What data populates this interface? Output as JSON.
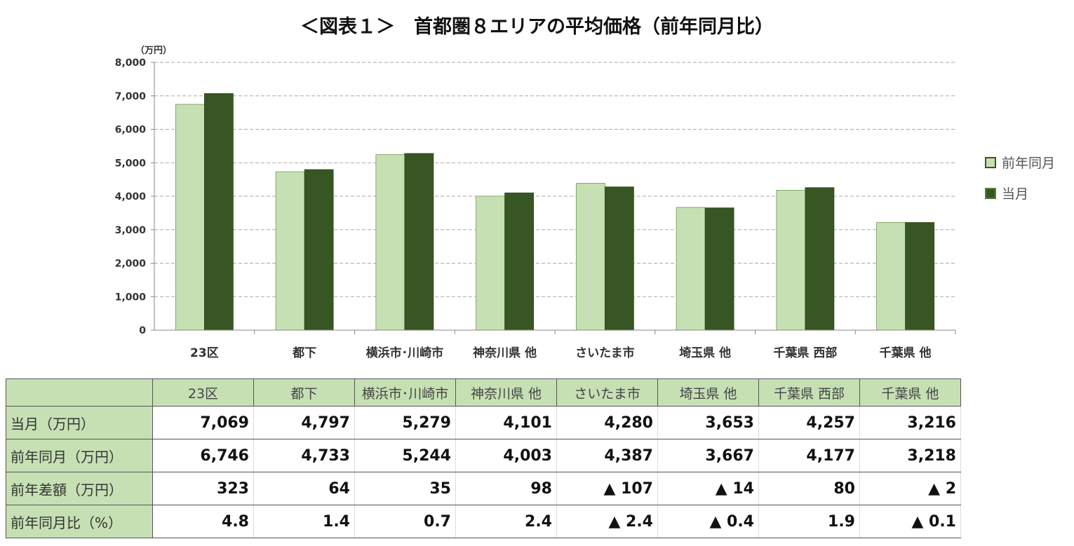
{
  "title": "＜図表１＞　首都圏８エリアの平均価格（前年同月比）",
  "chart_data": {
    "type": "bar",
    "title": "＜図表１＞　首都圏８エリアの平均価格（前年同月比）",
    "ylabel": "（万円）",
    "ylim": [
      0,
      8000
    ],
    "yticks": [
      "0",
      "1,000",
      "2,000",
      "3,000",
      "4,000",
      "5,000",
      "6,000",
      "7,000",
      "8,000"
    ],
    "grid": true,
    "legend_placement": "right",
    "categories": [
      "23区",
      "都下",
      "横浜市･川崎市",
      "神奈川県 他",
      "さいたま市",
      "埼玉県 他",
      "千葉県 西部",
      "千葉県 他"
    ],
    "series": [
      {
        "name": "前年同月",
        "color": "#c6e0b4",
        "values": [
          6746,
          4733,
          5244,
          4003,
          4387,
          3667,
          4177,
          3218
        ]
      },
      {
        "name": "当月",
        "color": "#375623",
        "values": [
          7069,
          4797,
          5279,
          4101,
          4280,
          3653,
          4257,
          3216
        ]
      }
    ]
  },
  "table": {
    "headers": [
      "23区",
      "都下",
      "横浜市･川崎市",
      "神奈川県 他",
      "さいたま市",
      "埼玉県 他",
      "千葉県 西部",
      "千葉県 他"
    ],
    "rows": [
      {
        "label": "当月（万円）",
        "cells": [
          "7,069",
          "4,797",
          "5,279",
          "4,101",
          "4,280",
          "3,653",
          "4,257",
          "3,216"
        ]
      },
      {
        "label": "前年同月（万円）",
        "cells": [
          "6,746",
          "4,733",
          "5,244",
          "4,003",
          "4,387",
          "3,667",
          "4,177",
          "3,218"
        ]
      },
      {
        "label": "前年差額（万円）",
        "cells": [
          "323",
          "64",
          "35",
          "98",
          "▲ 107",
          "▲ 14",
          "80",
          "▲ 2"
        ]
      },
      {
        "label": "前年同月比（%）",
        "cells": [
          "4.8",
          "1.4",
          "0.7",
          "2.4",
          "▲ 2.4",
          "▲ 0.4",
          "1.9",
          "▲ 0.1"
        ]
      }
    ]
  }
}
